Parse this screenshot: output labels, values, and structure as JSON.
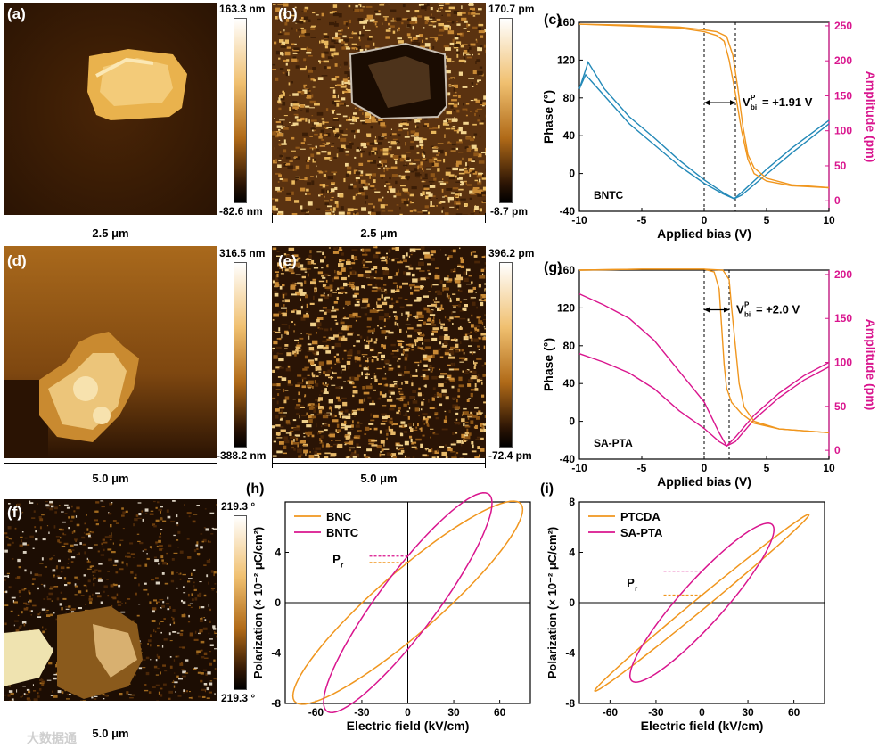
{
  "panels": {
    "a": {
      "label": "(a)",
      "cbar_top": "163.3 nm",
      "cbar_bottom": "-82.6 nm",
      "scale": "2.5 μm"
    },
    "b": {
      "label": "(b)",
      "cbar_top": "170.7 pm",
      "cbar_bottom": "-8.7 pm",
      "scale": "2.5 μm"
    },
    "d": {
      "label": "(d)",
      "cbar_top": "316.5 nm",
      "cbar_bottom": "-388.2 nm",
      "scale": "5.0 μm"
    },
    "e": {
      "label": "(e)",
      "cbar_top": "396.2 pm",
      "cbar_bottom": "-72.4 pm",
      "scale": "5.0 μm"
    },
    "f": {
      "label": "(f)",
      "cbar_top": "219.3 °",
      "cbar_bottom": "219.3 °",
      "scale": "5.0 μm"
    }
  },
  "watermark": "大数据通",
  "colors": {
    "orange": "#f0961e",
    "blue": "#2389b8",
    "magenta": "#d9158e",
    "afm_dark": "#2a1303",
    "afm_light": "#f4e2a8"
  },
  "chart_data": [
    {
      "id": "c",
      "panel_label": "(c)",
      "type": "line",
      "xlabel": "Applied bias (V)",
      "ylabel": "Phase (°)",
      "y2label": "Amplitude (pm)",
      "xlim": [
        -10,
        10
      ],
      "ylim": [
        -40,
        160
      ],
      "y2lim": [
        -15,
        255
      ],
      "xticks": [
        -10,
        -5,
        0,
        5,
        10
      ],
      "yticks": [
        -40,
        0,
        40,
        80,
        120,
        160
      ],
      "y2ticks": [
        0,
        50,
        100,
        150,
        200,
        250
      ],
      "annotation_label": "V",
      "annotation_sup": "P",
      "annotation_sub": "bi",
      "annotation_value": "= +1.91 V",
      "sample_label": "BNTC",
      "dashed_x": [
        0,
        2.5
      ],
      "phase_forward": [
        [
          -10,
          158
        ],
        [
          -6,
          156
        ],
        [
          -2,
          154
        ],
        [
          0,
          150
        ],
        [
          1,
          146
        ],
        [
          1.6,
          140
        ],
        [
          2.0,
          120
        ],
        [
          2.5,
          85
        ],
        [
          3,
          45
        ],
        [
          3.5,
          15
        ],
        [
          4,
          0
        ],
        [
          5,
          -8
        ],
        [
          7,
          -13
        ],
        [
          10,
          -15
        ]
      ],
      "phase_reverse": [
        [
          -10,
          158
        ],
        [
          -6,
          157
        ],
        [
          -2,
          155
        ],
        [
          0,
          152
        ],
        [
          1,
          150
        ],
        [
          1.8,
          145
        ],
        [
          2.3,
          125
        ],
        [
          2.7,
          90
        ],
        [
          3.1,
          50
        ],
        [
          3.5,
          20
        ],
        [
          4,
          6
        ],
        [
          5,
          -5
        ],
        [
          7,
          -12
        ],
        [
          10,
          -15
        ]
      ],
      "amp_forward": [
        [
          -10,
          160
        ],
        [
          -9.3,
          198
        ],
        [
          -8,
          160
        ],
        [
          -6,
          120
        ],
        [
          -4,
          90
        ],
        [
          -2,
          58
        ],
        [
          0,
          30
        ],
        [
          1.5,
          12
        ],
        [
          2.4,
          3
        ],
        [
          3,
          8
        ],
        [
          5,
          38
        ],
        [
          7,
          68
        ],
        [
          10,
          110
        ]
      ],
      "amp_reverse": [
        [
          -10,
          160
        ],
        [
          -9.5,
          180
        ],
        [
          -8,
          150
        ],
        [
          -6,
          110
        ],
        [
          -4,
          80
        ],
        [
          -2,
          50
        ],
        [
          0,
          25
        ],
        [
          1.5,
          10
        ],
        [
          2.4,
          3
        ],
        [
          3,
          12
        ],
        [
          5,
          45
        ],
        [
          7,
          75
        ],
        [
          10,
          115
        ]
      ]
    },
    {
      "id": "g",
      "panel_label": "(g)",
      "type": "line",
      "xlabel": "Applied bias (V)",
      "ylabel": "Phase (°)",
      "y2label": "Amplitude (pm)",
      "xlim": [
        -10,
        10
      ],
      "ylim": [
        -40,
        160
      ],
      "y2lim": [
        -10,
        205
      ],
      "xticks": [
        -10,
        -5,
        0,
        5,
        10
      ],
      "yticks": [
        -40,
        0,
        40,
        80,
        120,
        160
      ],
      "y2ticks": [
        0,
        50,
        100,
        150,
        200
      ],
      "annotation_label": "V",
      "annotation_sup": "P",
      "annotation_sub": "bi",
      "annotation_value": "= +2.0 V",
      "sample_label": "SA-PTA",
      "dashed_x": [
        0,
        2.0
      ],
      "phase_forward": [
        [
          -10,
          160
        ],
        [
          -5,
          161
        ],
        [
          0,
          161
        ],
        [
          0.8,
          158
        ],
        [
          1.2,
          140
        ],
        [
          1.4,
          100
        ],
        [
          1.6,
          60
        ],
        [
          1.8,
          35
        ],
        [
          2.2,
          20
        ],
        [
          3,
          8
        ],
        [
          4,
          -2
        ],
        [
          6,
          -8
        ],
        [
          10,
          -12
        ]
      ],
      "phase_reverse": [
        [
          -10,
          160
        ],
        [
          -5,
          161
        ],
        [
          0,
          161
        ],
        [
          1.5,
          160
        ],
        [
          2.0,
          150
        ],
        [
          2.2,
          120
        ],
        [
          2.5,
          80
        ],
        [
          2.8,
          40
        ],
        [
          3.2,
          15
        ],
        [
          4,
          0
        ],
        [
          6,
          -8
        ],
        [
          10,
          -12
        ]
      ],
      "amp_forward": [
        [
          -10,
          178
        ],
        [
          -8,
          165
        ],
        [
          -6,
          150
        ],
        [
          -4,
          125
        ],
        [
          -2,
          90
        ],
        [
          0,
          55
        ],
        [
          1.2,
          20
        ],
        [
          1.8,
          5
        ],
        [
          2.5,
          10
        ],
        [
          4,
          35
        ],
        [
          6,
          60
        ],
        [
          8,
          80
        ],
        [
          10,
          95
        ]
      ],
      "amp_reverse": [
        [
          -10,
          110
        ],
        [
          -8,
          100
        ],
        [
          -6,
          88
        ],
        [
          -4,
          70
        ],
        [
          -2,
          45
        ],
        [
          0,
          25
        ],
        [
          1.2,
          10
        ],
        [
          1.8,
          5
        ],
        [
          2.5,
          15
        ],
        [
          4,
          40
        ],
        [
          6,
          65
        ],
        [
          8,
          85
        ],
        [
          10,
          100
        ]
      ]
    },
    {
      "id": "h",
      "panel_label": "(h)",
      "type": "line",
      "xlabel": "Electric field (kV/cm)",
      "ylabel": "Polarization (× 10⁻² μC/cm²)",
      "xlim": [
        -80,
        80
      ],
      "ylim": [
        -8,
        8
      ],
      "xticks": [
        -60,
        -30,
        0,
        30,
        60
      ],
      "yticks": [
        -8,
        -4,
        0,
        4
      ],
      "pr_label": "P",
      "pr_sub": "r",
      "series": [
        {
          "name": "BNC",
          "color": "#f0961e",
          "emax": 75,
          "pmax": 7.4,
          "pr": 3.2,
          "ec": 25
        },
        {
          "name": "BNTC",
          "color": "#d9158e",
          "emax": 55,
          "pmax": 7.9,
          "pr": 3.7,
          "ec": 15
        }
      ]
    },
    {
      "id": "i",
      "panel_label": "(i)",
      "type": "line",
      "xlabel": "Electric field (kV/cm)",
      "ylabel": "Polarization (× 10⁻² μC/cm²)",
      "xlim": [
        -80,
        80
      ],
      "ylim": [
        -8,
        8
      ],
      "xticks": [
        -60,
        -30,
        0,
        30,
        60
      ],
      "yticks": [
        -8,
        -4,
        0,
        4,
        8
      ],
      "pr_label": "P",
      "pr_sub": "r",
      "series": [
        {
          "name": "PTCDA",
          "color": "#f0961e",
          "emax": 70,
          "pmax": 7.0,
          "pr": 0.6,
          "ec": 6
        },
        {
          "name": "SA-PTA",
          "color": "#d9158e",
          "emax": 47,
          "pmax": 5.8,
          "pr": 2.5,
          "ec": 18
        }
      ]
    }
  ]
}
